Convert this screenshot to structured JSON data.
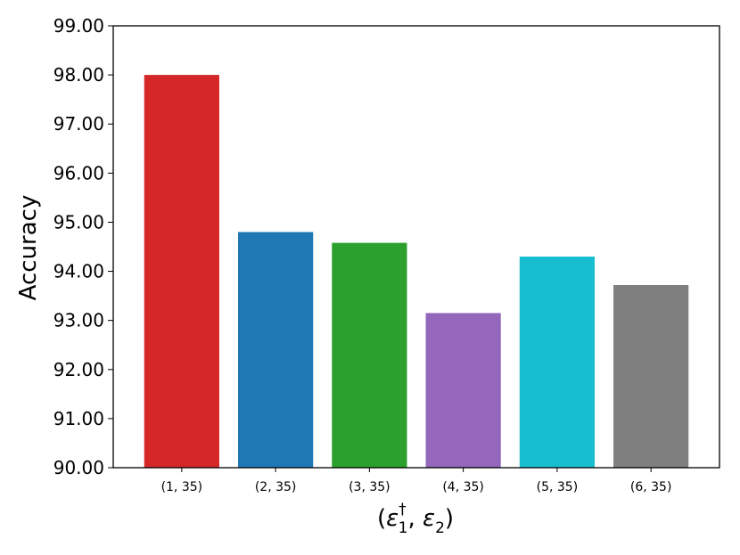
{
  "chart_data": {
    "type": "bar",
    "categories": [
      "(1, 35)",
      "(2, 35)",
      "(3, 35)",
      "(4, 35)",
      "(5, 35)",
      "(6, 35)"
    ],
    "values": [
      98.0,
      94.8,
      94.58,
      93.15,
      94.3,
      93.72
    ],
    "colors": [
      "#d62728",
      "#1f77b4",
      "#2ca02c",
      "#9467bd",
      "#17becf",
      "#7f7f7f"
    ],
    "ylabel": "Accuracy",
    "xlabel_parts": {
      "open": "(",
      "eps1": "ε",
      "sub1": "1",
      "sup1": "†",
      "sep": ", ",
      "eps2": "ε",
      "sub2": "2",
      "close": ")"
    },
    "ylim": [
      90,
      99
    ],
    "yticks": [
      "90.00",
      "91.00",
      "92.00",
      "93.00",
      "94.00",
      "95.00",
      "96.00",
      "97.00",
      "98.00",
      "99.00"
    ],
    "grid": false,
    "legend": "none"
  }
}
